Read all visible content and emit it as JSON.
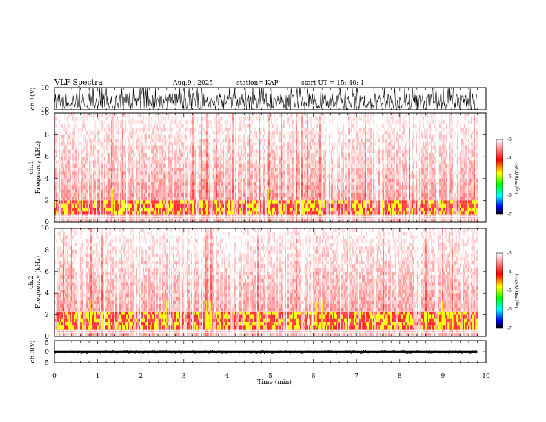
{
  "header": {
    "title": "VLF Spectra",
    "date": "Aug.9 , 2025",
    "station": "station= KAP",
    "start": "start UT = 15: 40: 1"
  },
  "chart_data": [
    {
      "type": "line",
      "name": "ch1-waveform",
      "ylabel": "ch.1(V)",
      "ylim": [
        -10,
        10
      ],
      "ytick_labels": [
        "10",
        "-10"
      ],
      "xlim": [
        0,
        10
      ]
    },
    {
      "type": "heatmap",
      "name": "ch1-spectrogram",
      "ylabel": "ch.1\nFrequency (kHz)",
      "ylabel_line1": "ch.1",
      "ylabel_line2": "Frequency (kHz)",
      "ylim": [
        0,
        10
      ],
      "yticks": [
        0,
        2,
        4,
        6,
        8,
        10
      ],
      "ytick_labels": [
        "0",
        "2",
        "4",
        "6",
        "8",
        "10"
      ],
      "xlim": [
        0,
        10
      ],
      "data_end_min": 9.8,
      "strong_band_khz": [
        0.8,
        2.1
      ],
      "colorbar": {
        "label": "log(PSD)(V²/Hz)",
        "range": [
          -7,
          -3
        ],
        "ticks": [
          "-3",
          "-4",
          "-5",
          "-6",
          "-7"
        ]
      }
    },
    {
      "type": "heatmap",
      "name": "ch2-spectrogram",
      "ylabel": "ch.2\nFrequency (kHz)",
      "ylabel_line1": "ch.2",
      "ylabel_line2": "Frequency (kHz)",
      "ylim": [
        0,
        10
      ],
      "yticks": [
        0,
        2,
        4,
        6,
        8,
        10
      ],
      "ytick_labels": [
        "0",
        "2",
        "4",
        "6",
        "8",
        "10"
      ],
      "xlim": [
        0,
        10
      ],
      "data_end_min": 9.8,
      "strong_band_khz": [
        0.8,
        2.3
      ],
      "colorbar": {
        "label": "log(PSD)(V²/Hz)",
        "range": [
          -7,
          -3
        ],
        "ticks": [
          "-3",
          "-4",
          "-5",
          "-6",
          "-7"
        ]
      }
    },
    {
      "type": "line",
      "name": "ch3-waveform",
      "ylabel": "ch.3(V)",
      "ylim": [
        -5,
        5
      ],
      "yticks": [
        5,
        0,
        -5
      ],
      "ytick_labels": [
        "5",
        "0",
        "-5"
      ],
      "xlim": [
        0,
        10
      ],
      "xlabel": "Time (min)",
      "xticks": [
        0,
        1,
        2,
        3,
        4,
        5,
        6,
        7,
        8,
        9,
        10
      ],
      "xtick_labels": [
        "0",
        "1",
        "2",
        "3",
        "4",
        "5",
        "6",
        "7",
        "8",
        "9",
        "10"
      ]
    }
  ],
  "colors": {
    "spectro_low": "#ffffff",
    "spectro_mid": "#ff0000",
    "spectro_high": "#ffff00",
    "colorbar_stops": [
      "#ffffff",
      "#ff0000",
      "#ffff00",
      "#00ff00",
      "#00ffff",
      "#0000ff",
      "#000000"
    ]
  }
}
